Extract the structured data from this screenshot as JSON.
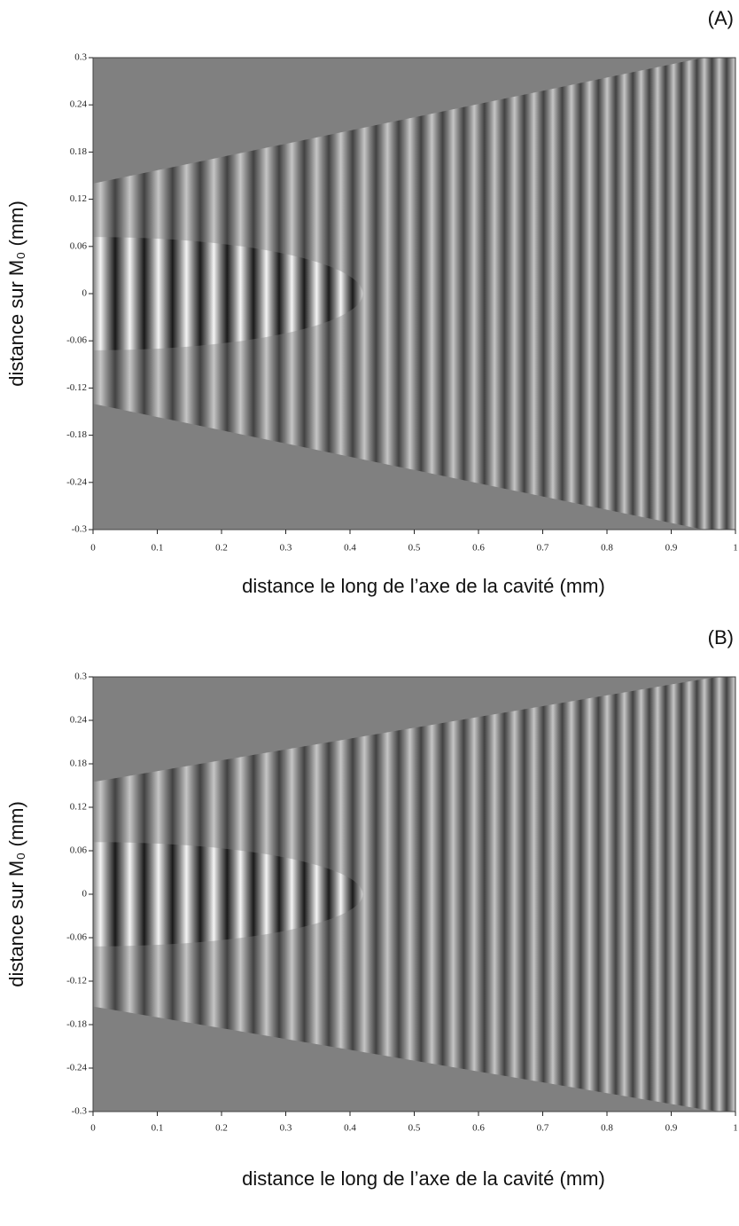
{
  "chart_data": [
    {
      "type": "fringe-map",
      "panel_label": "(A)",
      "x_label": "distance le long de l’axe de la cavité (mm)",
      "y_label": "distance sur M₀ (mm)",
      "xlim": [
        0,
        1
      ],
      "ylim": [
        -0.3,
        0.3
      ],
      "xticks": [
        0,
        0.1,
        0.2,
        0.3,
        0.4,
        0.5,
        0.6,
        0.7,
        0.8,
        0.9,
        1
      ],
      "yticks": [
        0.3,
        0.24,
        0.18,
        0.12,
        0.06,
        0,
        -0.06,
        -0.12,
        -0.18,
        -0.24,
        -0.3
      ]
    },
    {
      "type": "fringe-map",
      "panel_label": "(B)",
      "x_label": "distance le long de l’axe de la cavité (mm)",
      "y_label": "distance sur M₀ (mm)",
      "xlim": [
        0,
        1
      ],
      "ylim": [
        -0.3,
        0.3
      ],
      "xticks": [
        0,
        0.1,
        0.2,
        0.3,
        0.4,
        0.5,
        0.6,
        0.7,
        0.8,
        0.9,
        1
      ],
      "yticks": [
        0.3,
        0.24,
        0.18,
        0.12,
        0.06,
        0,
        -0.06,
        -0.12,
        -0.18,
        -0.24,
        -0.3
      ]
    }
  ]
}
